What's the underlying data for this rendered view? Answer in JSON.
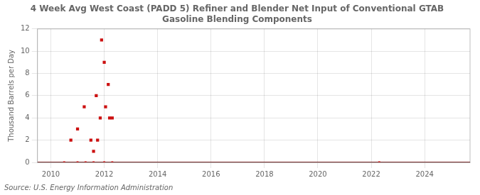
{
  "chart_data": {
    "type": "scatter",
    "title": "4 Week Avg West Coast (PADD 5) Refiner and Blender Net Input of Conventional GTAB\nGasoline Blending Components",
    "ylabel": "Thousand Barrels per Day",
    "source": "Source: U.S. Energy Information Administration",
    "xlim": [
      2009.5,
      2025.7
    ],
    "xticks": [
      2010,
      2012,
      2014,
      2016,
      2018,
      2020,
      2022,
      2024
    ],
    "ylim": [
      0,
      12
    ],
    "yticks": [
      0,
      2,
      4,
      6,
      8,
      10,
      12
    ],
    "grid": true,
    "series": [
      {
        "type": "line",
        "color": "#7a0000",
        "line_style": "solid",
        "x": [
          2009.5,
          2025.7
        ],
        "values": [
          0,
          0
        ]
      },
      {
        "type": "scatter",
        "color": "#cc1111",
        "marker": "square",
        "x": [
          2010.75,
          2011.0,
          2011.25,
          2011.5,
          2011.6,
          2011.7,
          2011.75,
          2011.85,
          2011.9,
          2012.0,
          2012.05,
          2012.15,
          2012.2,
          2012.3
        ],
        "values": [
          2,
          3,
          5,
          2,
          1,
          6,
          2,
          4,
          11,
          9,
          5,
          7,
          4,
          4
        ]
      },
      {
        "type": "scatter",
        "color": "#cc1111",
        "marker": "square",
        "x": [
          2010.5,
          2011.0,
          2011.3,
          2011.6,
          2012.0,
          2012.3,
          2022.3
        ],
        "values": [
          0,
          0,
          0,
          0,
          0,
          0,
          0
        ]
      }
    ]
  }
}
